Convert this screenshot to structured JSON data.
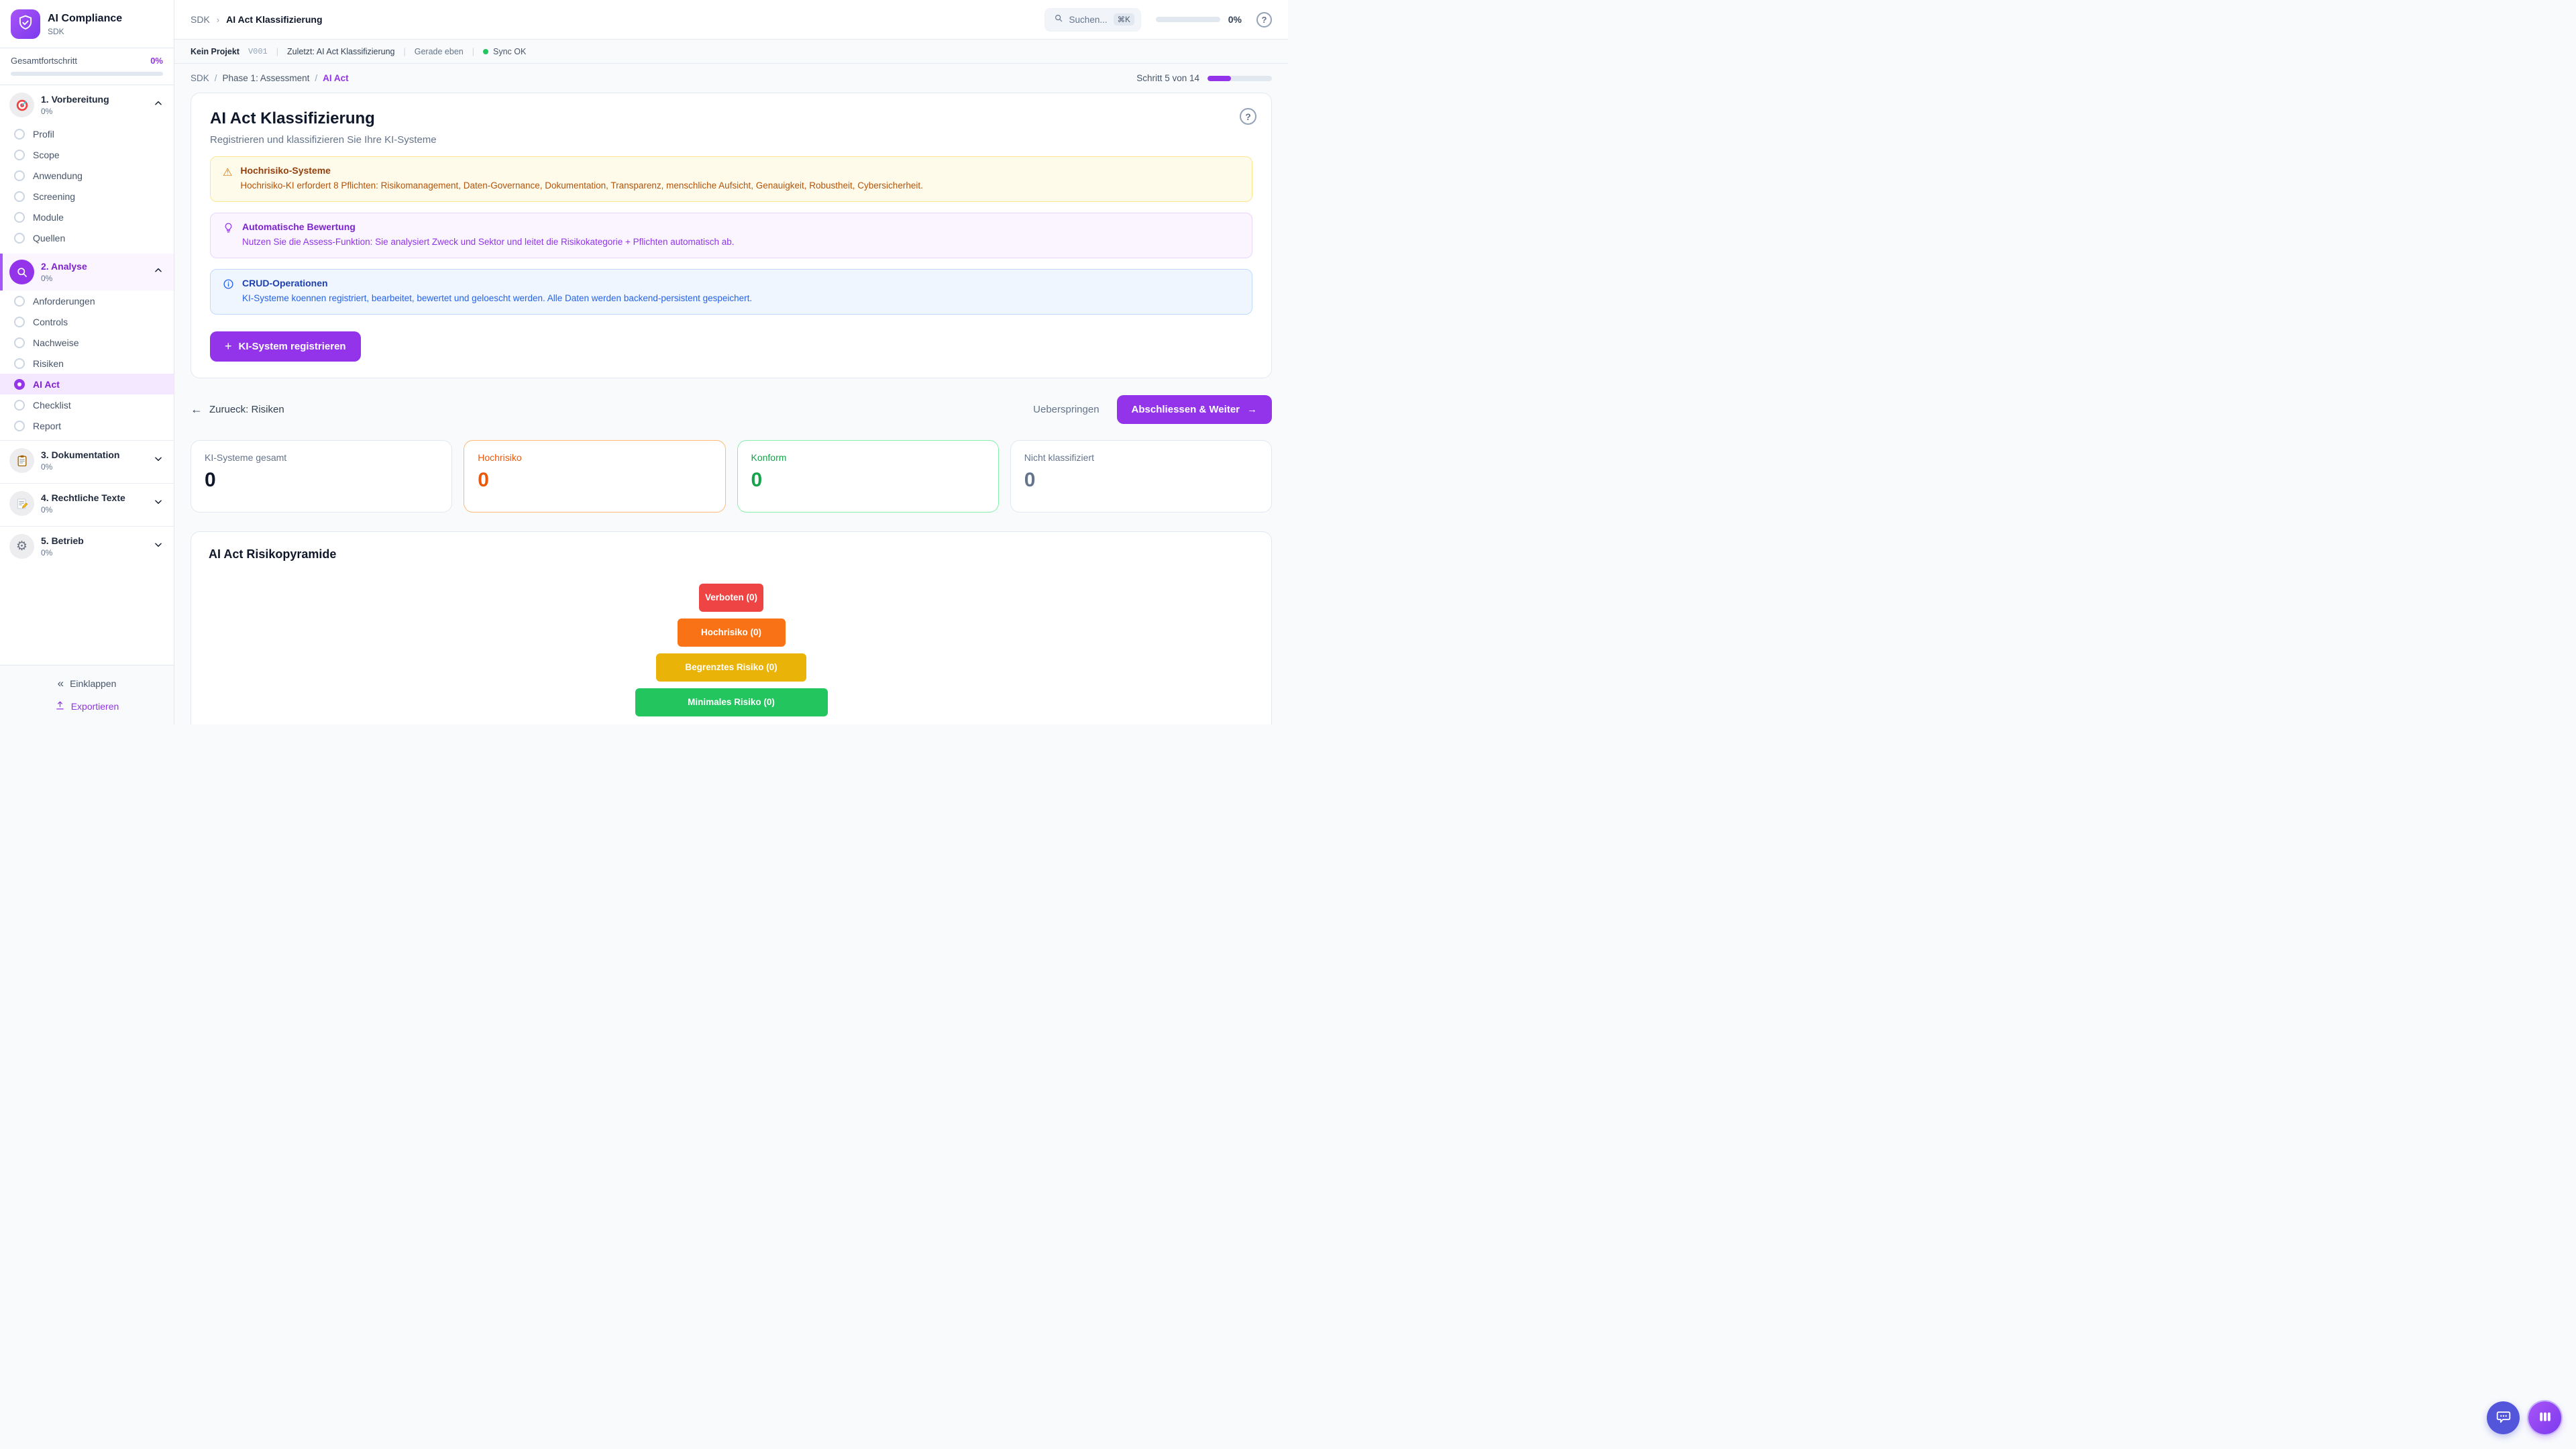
{
  "colors": {
    "accent": "#9333ea",
    "sync_ok": "#22c55e",
    "warn_border": "#fde68a",
    "tip_border": "#e9d5ff",
    "info_border": "#bfdbfe",
    "stat_orange": "#ea580c",
    "stat_green": "#16a34a"
  },
  "sidebar": {
    "app_title": "AI Compliance",
    "app_subtitle": "SDK",
    "overall_progress_label": "Gesamtfortschritt",
    "overall_progress_value": "0%",
    "sections": [
      {
        "label": "1. Vorbereitung",
        "progress": "0%",
        "icon": "target-icon",
        "expanded": true,
        "items": [
          {
            "label": "Profil"
          },
          {
            "label": "Scope"
          },
          {
            "label": "Anwendung"
          },
          {
            "label": "Screening"
          },
          {
            "label": "Module"
          },
          {
            "label": "Quellen"
          }
        ]
      },
      {
        "label": "2. Analyse",
        "progress": "0%",
        "icon": "magnifier-icon",
        "expanded": true,
        "active": true,
        "items": [
          {
            "label": "Anforderungen"
          },
          {
            "label": "Controls"
          },
          {
            "label": "Nachweise"
          },
          {
            "label": "Risiken"
          },
          {
            "label": "AI Act",
            "active": true
          },
          {
            "label": "Checklist"
          },
          {
            "label": "Report"
          }
        ]
      },
      {
        "label": "3. Dokumentation",
        "progress": "0%",
        "icon": "clipboard-icon",
        "expanded": false,
        "items": []
      },
      {
        "label": "4. Rechtliche Texte",
        "progress": "0%",
        "icon": "memo-icon",
        "expanded": false,
        "items": []
      },
      {
        "label": "5. Betrieb",
        "progress": "0%",
        "icon": "gear-icon",
        "expanded": false,
        "items": []
      }
    ],
    "gear_glyph": "⚙",
    "collapse_label": "Einklappen",
    "collapse_glyph": "«",
    "export_label": "Exportieren"
  },
  "topbar": {
    "breadcrumb_root": "SDK",
    "breadcrumb_sep": "›",
    "breadcrumb_current": "AI Act Klassifizierung",
    "search_placeholder": "Suchen...",
    "search_shortcut": "⌘K",
    "progress_value": "0%",
    "help_glyph": "?"
  },
  "statusbar": {
    "project": "Kein Projekt",
    "version": "V001",
    "divider": "|",
    "last_activity": "Zuletzt: AI Act Klassifizierung",
    "time": "Gerade eben",
    "sync": "Sync OK"
  },
  "page": {
    "breadcrumb": {
      "root": "SDK",
      "sep": "/",
      "phase": "Phase 1: Assessment",
      "current": "AI Act"
    },
    "step": {
      "label": "Schritt 5 von 14",
      "current": 5,
      "total": 14
    },
    "card": {
      "title": "AI Act Klassifizierung",
      "subtitle": "Registrieren und klassifizieren Sie Ihre KI-Systeme",
      "help_glyph": "?",
      "banners": [
        {
          "type": "warning",
          "icon": "warning-triangle-icon",
          "glyph": "⚠",
          "title": "Hochrisiko-Systeme",
          "body": "Hochrisiko-KI erfordert 8 Pflichten: Risikomanagement, Daten-Governance, Dokumentation, Transparenz, menschliche Aufsicht, Genauigkeit, Robustheit, Cybersicherheit."
        },
        {
          "type": "tip",
          "icon": "lightbulb-icon",
          "title": "Automatische Bewertung",
          "body": "Nutzen Sie die Assess-Funktion: Sie analysiert Zweck und Sektor und leitet die Risikokategorie + Pflichten automatisch ab."
        },
        {
          "type": "info",
          "icon": "info-circle-icon",
          "title": "CRUD-Operationen",
          "body": "KI-Systeme koennen registriert, bearbeitet, bewertet und geloescht werden. Alle Daten werden backend-persistent gespeichert."
        }
      ],
      "register_button": {
        "plus": "+",
        "label": "KI-System registrieren"
      }
    },
    "nav": {
      "back_arrow": "←",
      "back": "Zurueck: Risiken",
      "skip": "Ueberspringen",
      "next": "Abschliessen & Weiter",
      "next_arrow": "→"
    },
    "stats": [
      {
        "label": "KI-Systeme gesamt",
        "value": "0",
        "variant": "default"
      },
      {
        "label": "Hochrisiko",
        "value": "0",
        "variant": "orange"
      },
      {
        "label": "Konform",
        "value": "0",
        "variant": "green"
      },
      {
        "label": "Nicht klassifiziert",
        "value": "0",
        "variant": "gray"
      }
    ],
    "pyramid": {
      "title": "AI Act Risikopyramide",
      "levels": [
        {
          "label": "Verboten (0)",
          "count": 0,
          "color": "#ef4444"
        },
        {
          "label": "Hochrisiko (0)",
          "count": 0,
          "color": "#f97316"
        },
        {
          "label": "Begrenztes Risiko (0)",
          "count": 0,
          "color": "#eab308"
        },
        {
          "label": "Minimales Risiko (0)",
          "count": 0,
          "color": "#22c55e"
        }
      ]
    }
  }
}
